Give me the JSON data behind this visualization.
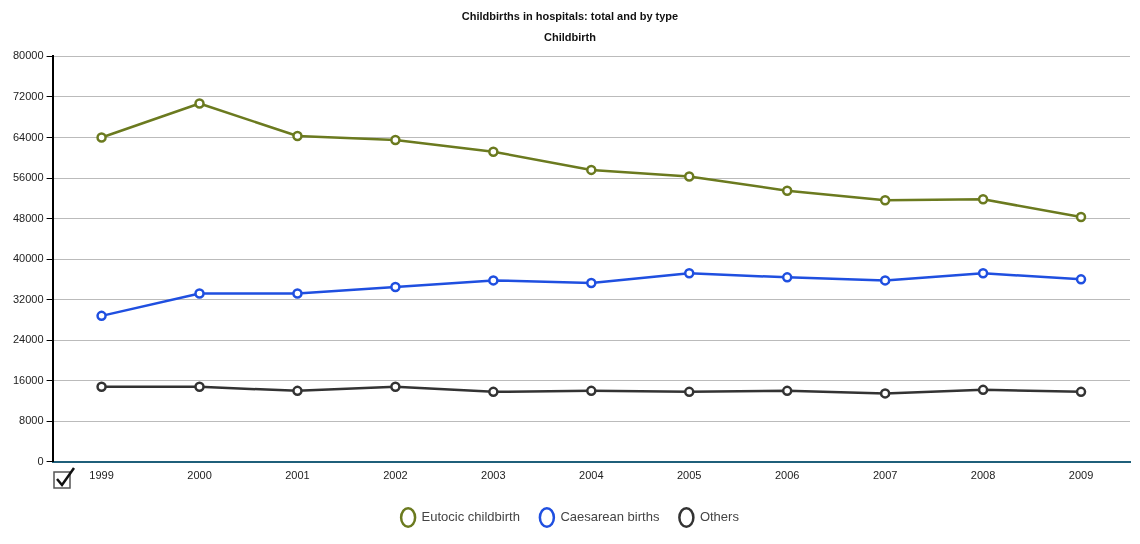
{
  "chart_data": {
    "type": "line",
    "title": "Childbirths in hospitals: total and by type",
    "subtitle": "Childbirth",
    "categories": [
      "1999",
      "2000",
      "2001",
      "2002",
      "2003",
      "2004",
      "2005",
      "2006",
      "2007",
      "2008",
      "2009"
    ],
    "series": [
      {
        "name": "Eutocic childbirth",
        "color": "#6b7a1f",
        "values": [
          64000,
          70700,
          64300,
          63500,
          61200,
          57600,
          56300,
          53500,
          51600,
          51800,
          48300
        ]
      },
      {
        "name": "Caesarean births",
        "color": "#1f4fe0",
        "values": [
          28800,
          33200,
          33200,
          34500,
          35800,
          35300,
          37200,
          36400,
          35800,
          37200,
          36000
        ]
      },
      {
        "name": "Others",
        "color": "#333333",
        "values": [
          14800,
          14800,
          14000,
          14800,
          13800,
          14000,
          13800,
          14000,
          13500,
          14200,
          13800
        ]
      }
    ],
    "ylim": [
      0,
      80000
    ],
    "yticks": [
      0,
      8000,
      16000,
      24000,
      32000,
      40000,
      48000,
      56000,
      64000,
      72000,
      80000
    ],
    "grid": "y",
    "legend": "bottom",
    "marker": "circle",
    "line_style": "solid"
  }
}
